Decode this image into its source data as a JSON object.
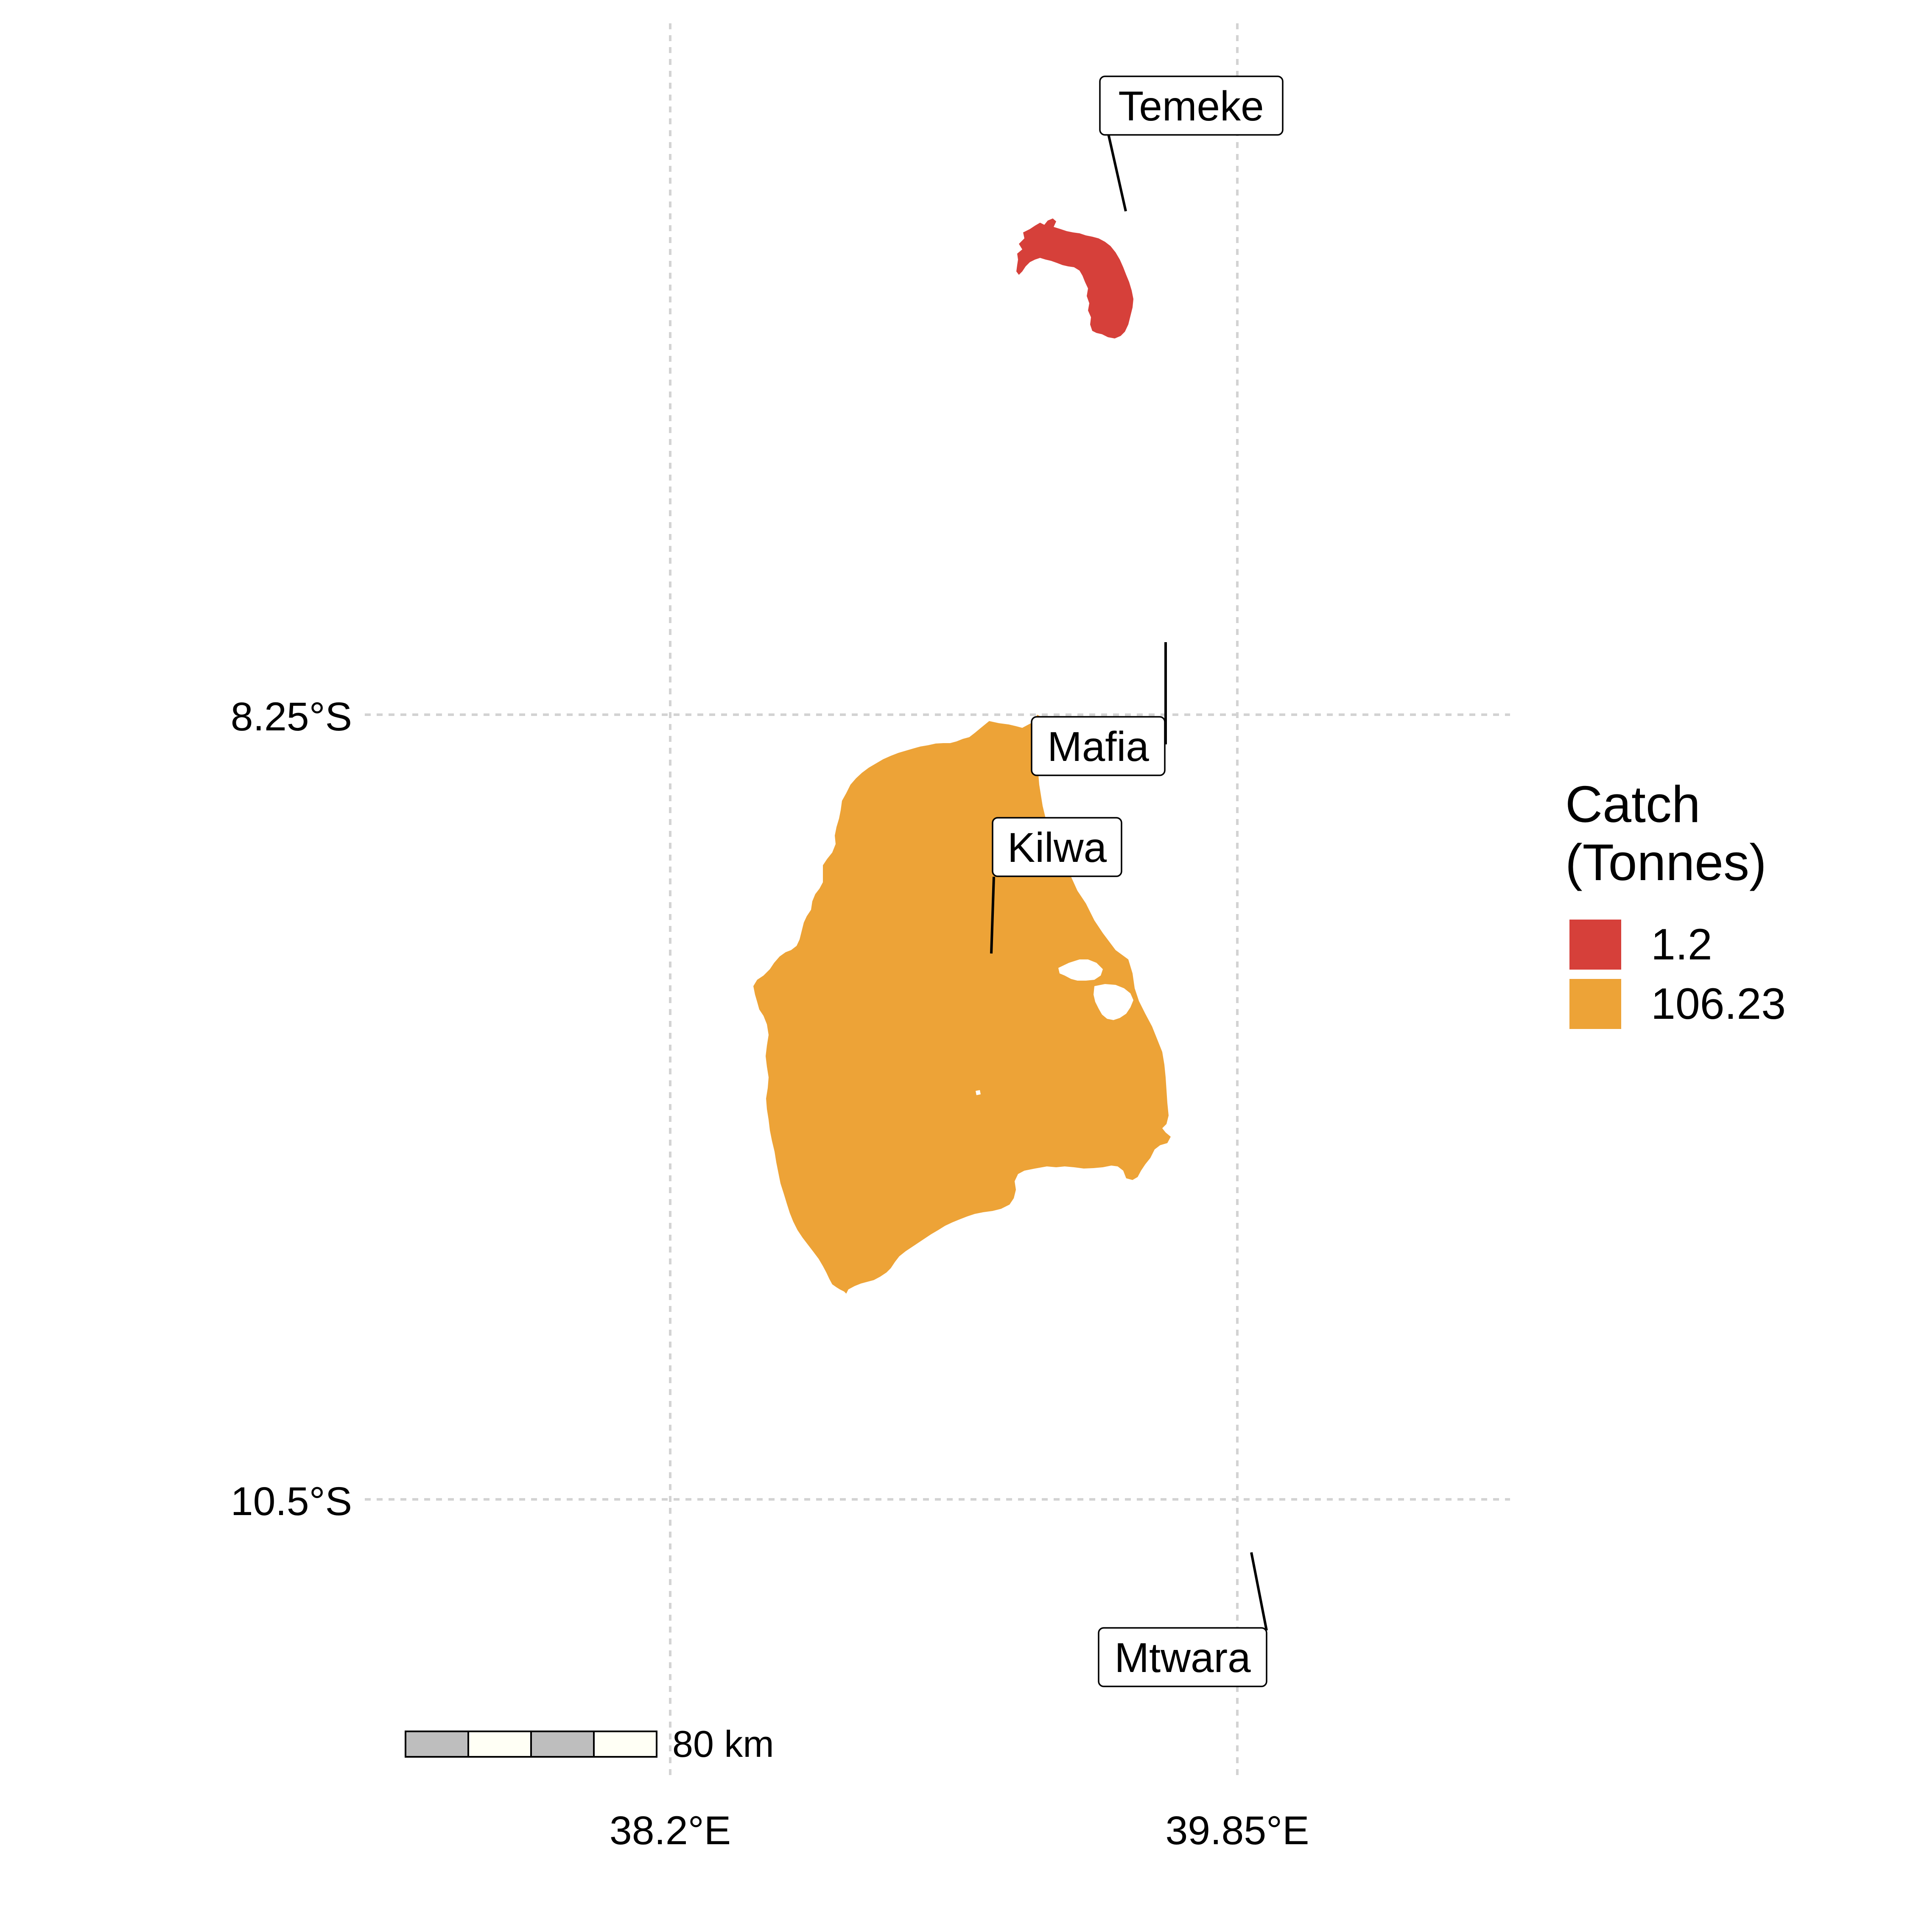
{
  "axes": {
    "x_ticks": [
      "38.2°E",
      "39.85°E"
    ],
    "y_ticks": [
      "8.25°S",
      "10.5°S"
    ]
  },
  "regions": [
    {
      "name": "Temeke",
      "catch_tonnes": 1.2,
      "color": "#D6403A"
    },
    {
      "name": "Kilwa",
      "catch_tonnes": 106.23,
      "color": "#EDA337"
    }
  ],
  "labels": {
    "temeke": "Temeke",
    "mafia": "Mafia",
    "kilwa": "Kilwa",
    "mtwara": "Mtwara"
  },
  "legend": {
    "title_line1": "Catch",
    "title_line2": "(Tonnes)",
    "items": [
      {
        "label": "1.2",
        "color": "#D6403A"
      },
      {
        "label": "106.23",
        "color": "#EDA337"
      }
    ]
  },
  "scale_bar": {
    "label": "80 km",
    "colors": [
      "#BEBEBE",
      "#FFFFF5"
    ]
  }
}
